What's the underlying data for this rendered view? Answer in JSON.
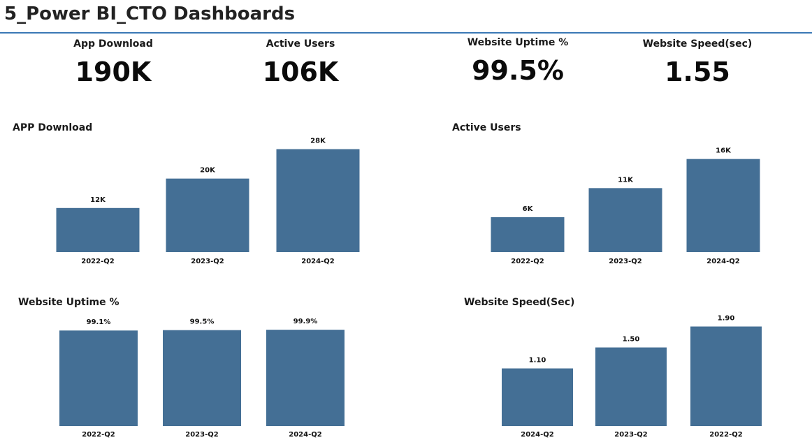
{
  "header": {
    "title": "5_Power BI_CTO Dashboards"
  },
  "kpis": [
    {
      "label": "App Download",
      "value": "190K"
    },
    {
      "label": "Active Users",
      "value": "106K"
    },
    {
      "label": "Website Uptime %",
      "value": "99.5%"
    },
    {
      "label": "Website Speed(sec)",
      "value": "1.55"
    }
  ],
  "colors": {
    "bar": "#446f95",
    "accent_line": "#3a78b5"
  },
  "chart_data": [
    {
      "type": "bar",
      "title": "APP Download",
      "categories": [
        "2022-Q2",
        "2023-Q2",
        "2024-Q2"
      ],
      "values": [
        12,
        20,
        28
      ],
      "value_labels": [
        "12K",
        "20K",
        "28K"
      ],
      "xlabel": "",
      "ylabel": "",
      "ylim": [
        0,
        30
      ],
      "grid": false
    },
    {
      "type": "bar",
      "title": "Active Users",
      "categories": [
        "2022-Q2",
        "2023-Q2",
        "2024-Q2"
      ],
      "values": [
        6,
        11,
        16
      ],
      "value_labels": [
        "6K",
        "11K",
        "16K"
      ],
      "xlabel": "",
      "ylabel": "",
      "ylim": [
        0,
        18
      ],
      "grid": false
    },
    {
      "type": "bar",
      "title": "Website Uptime %",
      "categories": [
        "2022-Q2",
        "2023-Q2",
        "2024-Q2"
      ],
      "values": [
        99.1,
        99.5,
        99.9
      ],
      "value_labels": [
        "99.1%",
        "99.5%",
        "99.9%"
      ],
      "xlabel": "",
      "ylabel": "",
      "ylim": [
        0,
        100
      ],
      "grid": false
    },
    {
      "type": "bar",
      "title": "Website Speed(Sec)",
      "categories": [
        "2024-Q2",
        "2023-Q2",
        "2022-Q2"
      ],
      "values": [
        1.1,
        1.5,
        1.9
      ],
      "value_labels": [
        "1.10",
        "1.50",
        "1.90"
      ],
      "xlabel": "",
      "ylabel": "",
      "ylim": [
        0,
        2.0
      ],
      "grid": false
    }
  ]
}
